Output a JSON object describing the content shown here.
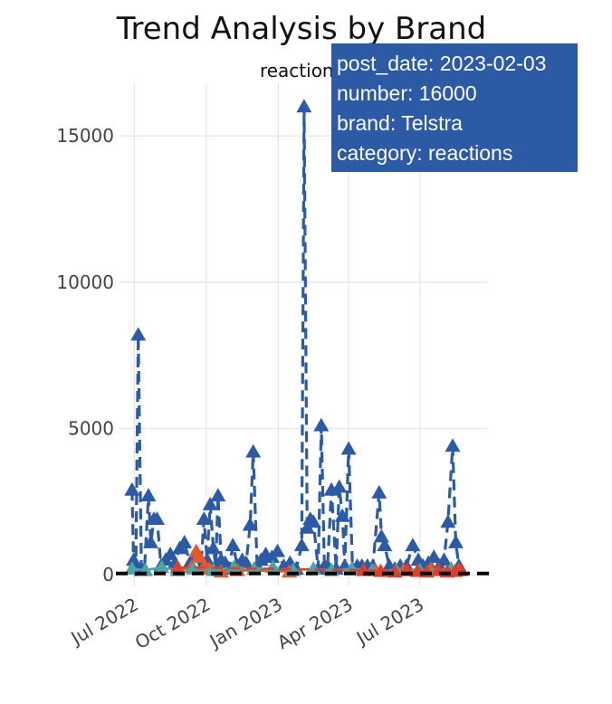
{
  "chart_data": {
    "type": "line",
    "title": "Trend Analysis by Brand",
    "subtitle": "reactions",
    "xlabel": "",
    "ylabel": "",
    "x_ticks": [
      "Jul 2022",
      "Oct 2022",
      "Jan 2023",
      "Apr 2023",
      "Jul 2023"
    ],
    "x_tick_dates": [
      "2022-07-01",
      "2022-10-01",
      "2023-01-01",
      "2023-04-01",
      "2023-07-01"
    ],
    "xlim": [
      "2022-06-12",
      "2023-09-25"
    ],
    "y_ticks": [
      0,
      5000,
      10000,
      15000
    ],
    "ylim": [
      -400,
      16800
    ],
    "grid": true,
    "marker": "triangle-up",
    "colors": {
      "Telstra": "#2c5aa5",
      "orange_brand": "#e8582c",
      "teal_brand": "#4ca3a8",
      "red_brand": "#d9412c",
      "mean_line": "#000000"
    },
    "mean_line_value": 40,
    "series": [
      {
        "name": "Telstra",
        "color": "#2c5aa5",
        "points": [
          [
            "2022-06-28",
            2900
          ],
          [
            "2022-06-30",
            500
          ],
          [
            "2022-07-03",
            300
          ],
          [
            "2022-07-06",
            8200
          ],
          [
            "2022-07-10",
            150
          ],
          [
            "2022-07-14",
            200
          ],
          [
            "2022-07-19",
            2700
          ],
          [
            "2022-07-22",
            1100
          ],
          [
            "2022-07-26",
            1900
          ],
          [
            "2022-07-30",
            1900
          ],
          [
            "2022-08-04",
            300
          ],
          [
            "2022-08-10",
            500
          ],
          [
            "2022-08-16",
            700
          ],
          [
            "2022-08-22",
            400
          ],
          [
            "2022-08-28",
            900
          ],
          [
            "2022-09-03",
            1100
          ],
          [
            "2022-09-10",
            400
          ],
          [
            "2022-09-17",
            700
          ],
          [
            "2022-09-24",
            200
          ],
          [
            "2022-09-28",
            1900
          ],
          [
            "2022-10-02",
            500
          ],
          [
            "2022-10-06",
            2400
          ],
          [
            "2022-10-10",
            900
          ],
          [
            "2022-10-13",
            300
          ],
          [
            "2022-10-16",
            2700
          ],
          [
            "2022-10-20",
            500
          ],
          [
            "2022-10-25",
            400
          ],
          [
            "2022-10-30",
            200
          ],
          [
            "2022-11-04",
            1000
          ],
          [
            "2022-11-10",
            300
          ],
          [
            "2022-11-16",
            500
          ],
          [
            "2022-11-21",
            400
          ],
          [
            "2022-11-26",
            1700
          ],
          [
            "2022-11-30",
            4200
          ],
          [
            "2022-12-05",
            300
          ],
          [
            "2022-12-10",
            500
          ],
          [
            "2022-12-16",
            700
          ],
          [
            "2022-12-24",
            600
          ],
          [
            "2022-12-31",
            800
          ],
          [
            "2023-01-08",
            300
          ],
          [
            "2023-01-16",
            400
          ],
          [
            "2023-01-24",
            200
          ],
          [
            "2023-01-31",
            1000
          ],
          [
            "2023-02-03",
            16000
          ],
          [
            "2023-02-07",
            1600
          ],
          [
            "2023-02-11",
            1900
          ],
          [
            "2023-02-15",
            1800
          ],
          [
            "2023-02-21",
            200
          ],
          [
            "2023-02-25",
            5100
          ],
          [
            "2023-03-01",
            300
          ],
          [
            "2023-03-05",
            300
          ],
          [
            "2023-03-10",
            2900
          ],
          [
            "2023-03-16",
            200
          ],
          [
            "2023-03-20",
            3000
          ],
          [
            "2023-03-24",
            2000
          ],
          [
            "2023-03-27",
            300
          ],
          [
            "2023-04-01",
            4300
          ],
          [
            "2023-04-06",
            200
          ],
          [
            "2023-04-12",
            300
          ],
          [
            "2023-04-18",
            300
          ],
          [
            "2023-04-25",
            300
          ],
          [
            "2023-05-02",
            300
          ],
          [
            "2023-05-10",
            2800
          ],
          [
            "2023-05-13",
            1300
          ],
          [
            "2023-05-17",
            1000
          ],
          [
            "2023-05-23",
            300
          ],
          [
            "2023-05-30",
            200
          ],
          [
            "2023-06-06",
            300
          ],
          [
            "2023-06-14",
            300
          ],
          [
            "2023-06-22",
            1000
          ],
          [
            "2023-06-29",
            500
          ],
          [
            "2023-07-05",
            300
          ],
          [
            "2023-07-12",
            400
          ],
          [
            "2023-07-19",
            600
          ],
          [
            "2023-07-26",
            300
          ],
          [
            "2023-08-01",
            500
          ],
          [
            "2023-08-06",
            1800
          ],
          [
            "2023-08-12",
            4400
          ],
          [
            "2023-08-16",
            1100
          ],
          [
            "2023-08-20",
            300
          ]
        ]
      },
      {
        "name": "",
        "color": "#e8582c",
        "points": [
          [
            "2022-09-12",
            250
          ],
          [
            "2022-09-18",
            800
          ],
          [
            "2022-09-22",
            600
          ],
          [
            "2022-09-29",
            300
          ],
          [
            "2022-10-05",
            200
          ],
          [
            "2022-10-20",
            100
          ],
          [
            "2022-11-10",
            150
          ],
          [
            "2023-01-15",
            100
          ],
          [
            "2023-05-05",
            150
          ],
          [
            "2023-06-10",
            150
          ],
          [
            "2023-07-15",
            200
          ],
          [
            "2023-08-20",
            150
          ]
        ]
      },
      {
        "name": "",
        "color": "#4ca3a8",
        "points": [
          [
            "2022-06-28",
            200
          ],
          [
            "2022-07-15",
            150
          ],
          [
            "2022-08-05",
            250
          ],
          [
            "2022-08-25",
            150
          ],
          [
            "2022-09-15",
            200
          ],
          [
            "2022-10-10",
            150
          ],
          [
            "2022-11-05",
            250
          ],
          [
            "2022-12-01",
            200
          ],
          [
            "2022-12-25",
            250
          ],
          [
            "2023-01-20",
            150
          ],
          [
            "2023-02-15",
            200
          ],
          [
            "2023-03-10",
            150
          ],
          [
            "2023-04-05",
            200
          ],
          [
            "2023-05-01",
            150
          ],
          [
            "2023-06-01",
            150
          ],
          [
            "2023-07-01",
            150
          ],
          [
            "2023-08-10",
            200
          ]
        ]
      },
      {
        "name": "",
        "color": "#d9412c",
        "points": [
          [
            "2022-08-25",
            250
          ],
          [
            "2023-04-20",
            150
          ],
          [
            "2023-05-12",
            120
          ],
          [
            "2023-05-30",
            100
          ],
          [
            "2023-06-15",
            150
          ],
          [
            "2023-06-28",
            120
          ],
          [
            "2023-07-10",
            100
          ],
          [
            "2023-07-25",
            150
          ],
          [
            "2023-08-05",
            100
          ],
          [
            "2023-08-15",
            120
          ],
          [
            "2023-08-22",
            150
          ]
        ]
      }
    ]
  },
  "tooltip": {
    "lines": [
      "post_date: 2023-02-03",
      "number: 16000",
      "brand: Telstra",
      "category: reactions"
    ],
    "background": "#2c5aa5",
    "text_color": "#ffffff"
  }
}
